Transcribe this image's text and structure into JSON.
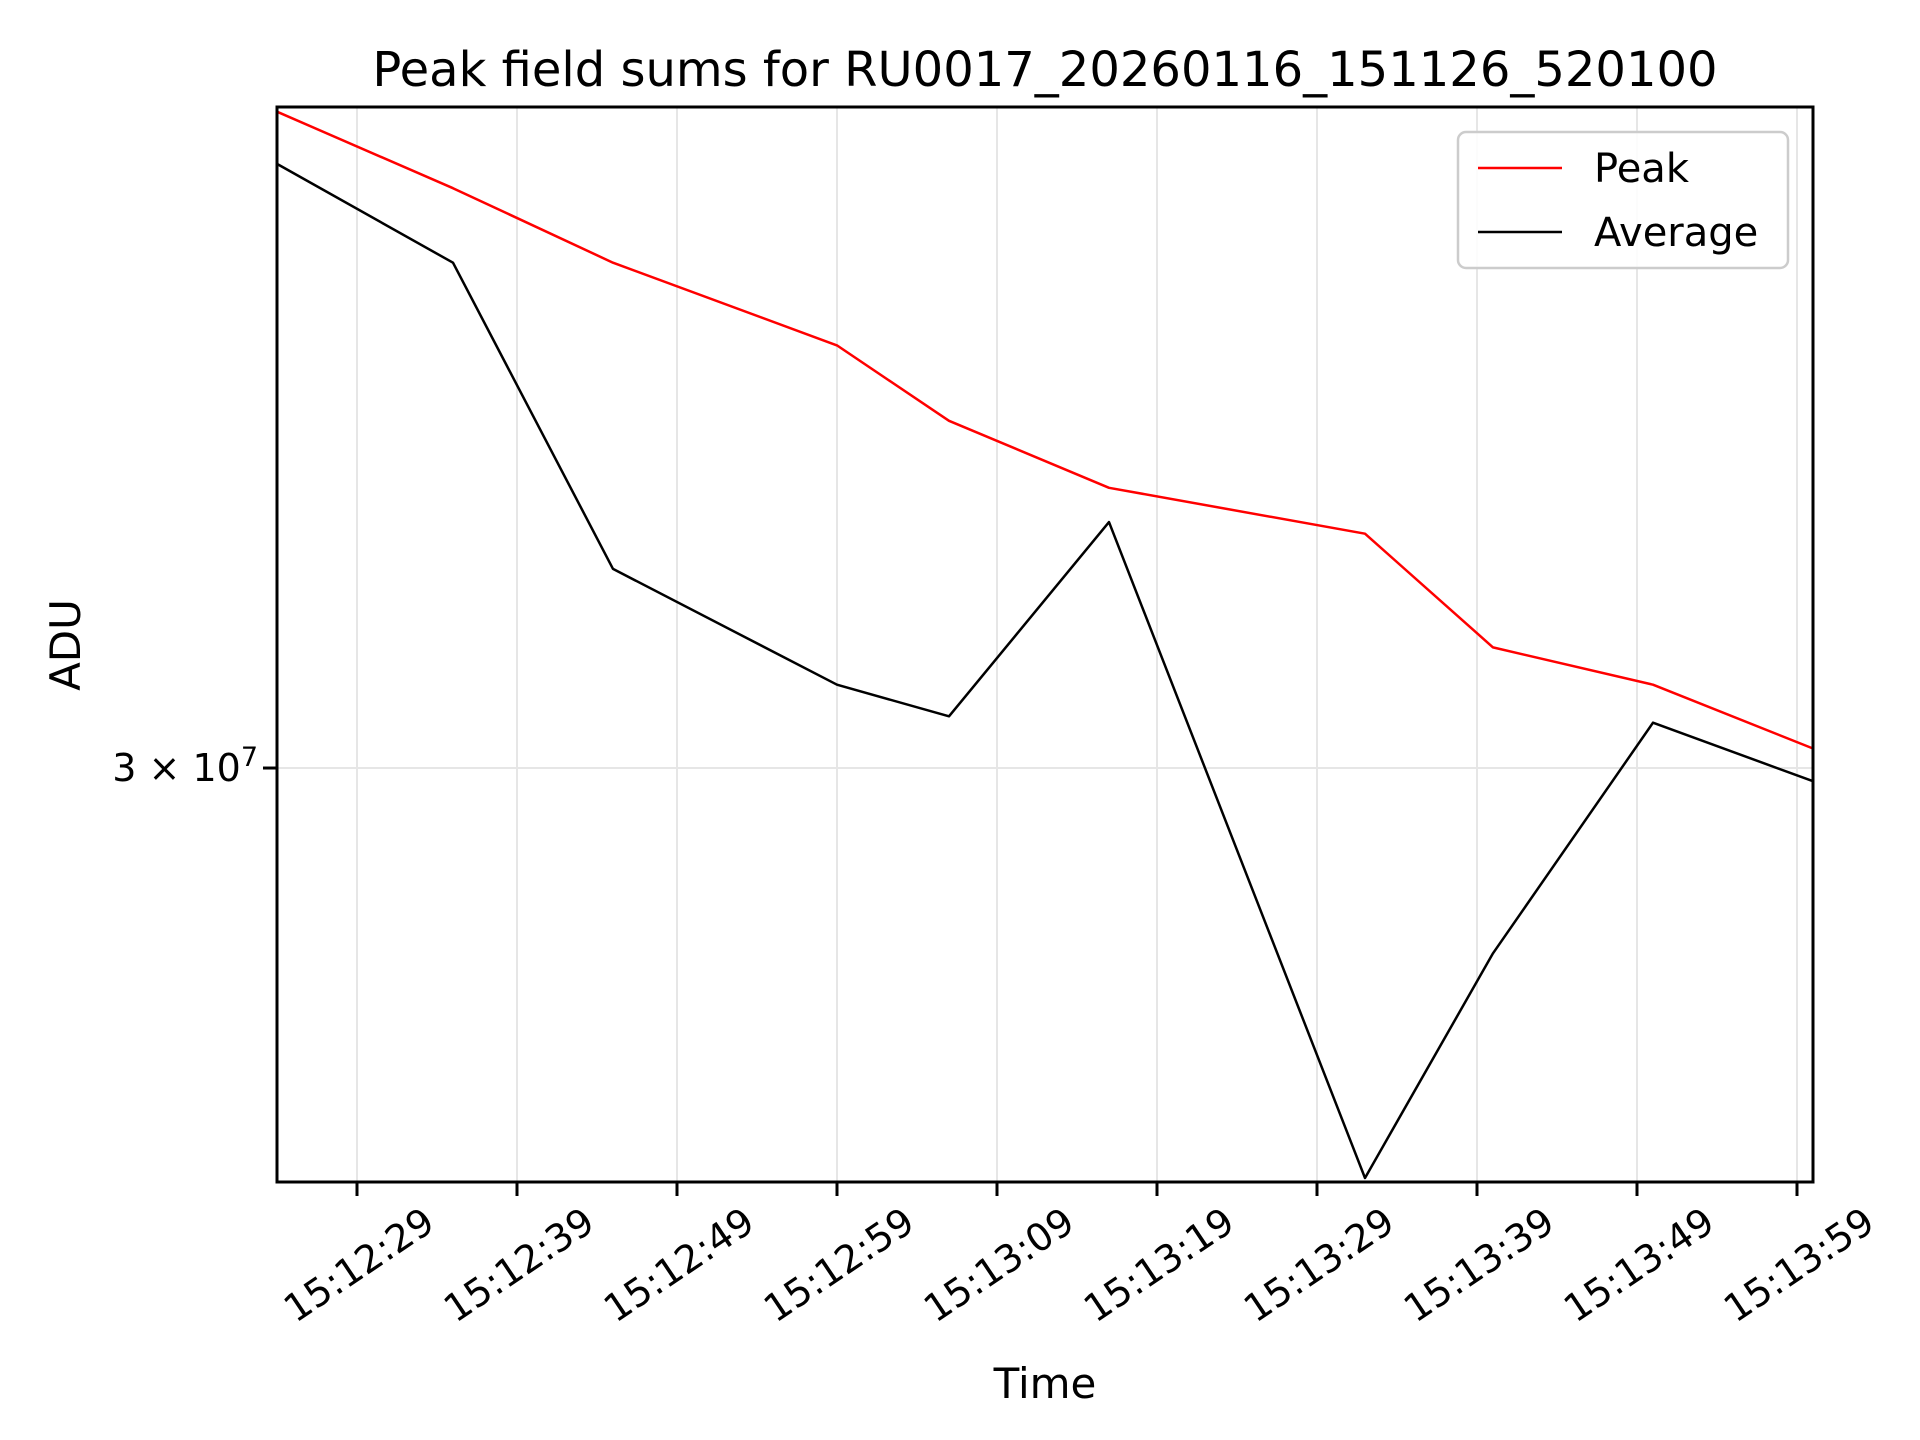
{
  "figure": {
    "title": "Peak field sums for RU0017_20260116_151126_520100",
    "xlabel": "Time",
    "ylabel": "ADU",
    "background_color": "#ffffff"
  },
  "chart_data": {
    "type": "line",
    "title": "Peak field sums for RU0017_20260116_151126_520100",
    "xlabel": "Time",
    "ylabel": "ADU",
    "y_scale": "log",
    "ylim": [
      24300000,
      42000000
    ],
    "grid": true,
    "legend_position": "upper right",
    "x": [
      "15:12:24",
      "15:12:35",
      "15:12:45",
      "15:12:59",
      "15:13:06",
      "15:13:16",
      "15:13:32",
      "15:13:40",
      "15:13:50",
      "15:14:00"
    ],
    "series": [
      {
        "name": "Peak",
        "color": "#ff0000",
        "values": [
          41900000,
          40300000,
          38800000,
          37200000,
          35800000,
          34600000,
          33800000,
          31900000,
          31300000,
          30300000
        ]
      },
      {
        "name": "Average",
        "color": "#000000",
        "values": [
          40800000,
          38800000,
          33200000,
          31300000,
          30800000,
          34000000,
          24350000,
          27300000,
          30700000,
          29800000
        ]
      }
    ],
    "x_tick_labels": [
      "15:12:29",
      "15:12:39",
      "15:12:49",
      "15:12:59",
      "15:13:09",
      "15:13:19",
      "15:13:29",
      "15:13:39",
      "15:13:49",
      "15:13:59"
    ],
    "y_tick": {
      "value": 30000000,
      "prefix": "3 × 10",
      "exponent": "7"
    }
  }
}
